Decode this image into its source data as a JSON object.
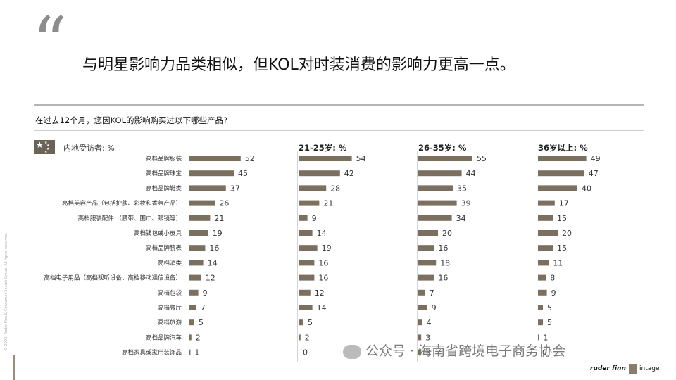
{
  "headline": "与明星影响力品类相似，但KOL对时装消费的影响力更高一点。",
  "quote_mark": "“",
  "question": "在过去12个月，您因KOL的影响购买过以下哪些产品?",
  "section_label": "内地受访者: %",
  "colors": {
    "bar": "#7b6f60",
    "flag": "#6b6357",
    "rule": "#b5b5b5"
  },
  "chart_data": {
    "type": "bar",
    "orientation": "horizontal",
    "categories": [
      "高档品牌服装",
      "高档品牌珠宝",
      "高档品牌鞋类",
      "高档美容产品（包括护肤、彩妆和香氛产品）",
      "高档服装配件 （腰带、围巾、眼镜等）",
      "高档钱包或小皮具",
      "高档品牌腕表",
      "高档酒类",
      "高档电子用品（高档视听设备、高档移动通信设备）",
      "高档包袋",
      "高档餐厅",
      "高档旅游",
      "高档品牌汽车",
      "高档家具或家用装饰品"
    ],
    "series": [
      {
        "name": "",
        "values": [
          52,
          45,
          37,
          26,
          21,
          19,
          16,
          14,
          12,
          9,
          7,
          5,
          2,
          1
        ]
      },
      {
        "name": "21-25岁: %",
        "values": [
          54,
          42,
          28,
          21,
          9,
          14,
          19,
          16,
          16,
          12,
          14,
          5,
          2,
          0
        ]
      },
      {
        "name": "26-35岁: %",
        "values": [
          55,
          44,
          35,
          39,
          34,
          20,
          16,
          18,
          16,
          7,
          9,
          4,
          3,
          3
        ]
      },
      {
        "name": "36岁以上: %",
        "values": [
          49,
          47,
          40,
          17,
          15,
          20,
          15,
          11,
          8,
          9,
          5,
          5,
          1,
          0
        ]
      }
    ]
  },
  "side_text": "© 2023. Ruder Finn & Consumer Search Group. All rights reserved.",
  "watermark": "公众号 · 海南省跨境电子商务协会",
  "logos": {
    "ruder_finn": "ruder finn",
    "intage": "intage"
  }
}
